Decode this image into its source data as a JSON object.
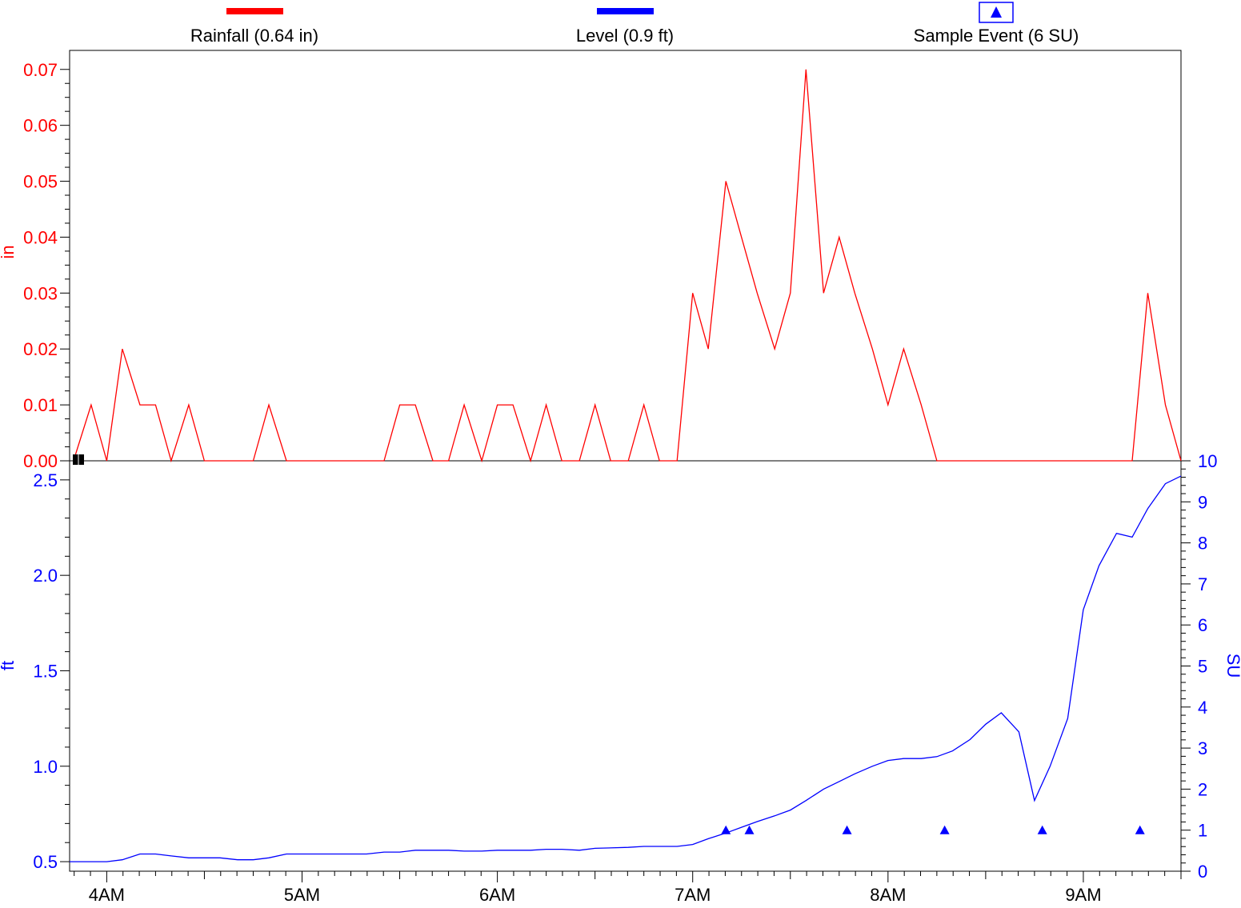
{
  "chart_data": {
    "type": "line",
    "legend": {
      "placement": "top",
      "items": [
        {
          "label": "Rainfall (0.64 in)",
          "color": "#ff0000",
          "marker": "line"
        },
        {
          "label": "Level (0.9 ft)",
          "color": "#0000ff",
          "marker": "line"
        },
        {
          "label": "Sample Event (6 SU)",
          "color": "#0000ff",
          "marker": "triangle-box"
        }
      ]
    },
    "x_axis": {
      "unit": "hours",
      "range": [
        3.81,
        9.5
      ],
      "tick_values": [
        4,
        5,
        6,
        7,
        8,
        9
      ],
      "tick_labels": [
        "4AM",
        "5AM",
        "6AM",
        "7AM",
        "8AM",
        "9AM"
      ]
    },
    "panels": [
      {
        "id": "rainfall",
        "ylabel": "in",
        "ylabel_color": "#ff0000",
        "ylim": [
          0,
          0.0734
        ],
        "y_ticks": [
          0.0,
          0.01,
          0.02,
          0.03,
          0.04,
          0.05,
          0.06,
          0.07
        ],
        "y_tick_labels": [
          "0.00",
          "0.01",
          "0.02",
          "0.03",
          "0.04",
          "0.05",
          "0.06",
          "0.07"
        ],
        "series": [
          {
            "color": "#ff0000",
            "points": [
              [
                3.83,
                0.0
              ],
              [
                3.92,
                0.01
              ],
              [
                4.0,
                0.0
              ],
              [
                4.08,
                0.02
              ],
              [
                4.17,
                0.01
              ],
              [
                4.25,
                0.01
              ],
              [
                4.33,
                0.0
              ],
              [
                4.42,
                0.01
              ],
              [
                4.5,
                0.0
              ],
              [
                4.58,
                0.0
              ],
              [
                4.67,
                0.0
              ],
              [
                4.75,
                0.0
              ],
              [
                4.83,
                0.01
              ],
              [
                4.92,
                0.0
              ],
              [
                5.0,
                0.0
              ],
              [
                5.08,
                0.0
              ],
              [
                5.17,
                0.0
              ],
              [
                5.25,
                0.0
              ],
              [
                5.33,
                0.0
              ],
              [
                5.42,
                0.0
              ],
              [
                5.5,
                0.01
              ],
              [
                5.58,
                0.01
              ],
              [
                5.67,
                0.0
              ],
              [
                5.75,
                0.0
              ],
              [
                5.83,
                0.01
              ],
              [
                5.92,
                0.0
              ],
              [
                6.0,
                0.01
              ],
              [
                6.08,
                0.01
              ],
              [
                6.17,
                0.0
              ],
              [
                6.25,
                0.01
              ],
              [
                6.33,
                0.0
              ],
              [
                6.42,
                0.0
              ],
              [
                6.5,
                0.01
              ],
              [
                6.58,
                0.0
              ],
              [
                6.67,
                0.0
              ],
              [
                6.75,
                0.01
              ],
              [
                6.83,
                0.0
              ],
              [
                6.92,
                0.0
              ],
              [
                7.0,
                0.03
              ],
              [
                7.08,
                0.02
              ],
              [
                7.17,
                0.05
              ],
              [
                7.25,
                0.04
              ],
              [
                7.33,
                0.03
              ],
              [
                7.42,
                0.02
              ],
              [
                7.5,
                0.03
              ],
              [
                7.58,
                0.07
              ],
              [
                7.67,
                0.03
              ],
              [
                7.75,
                0.04
              ],
              [
                7.83,
                0.03
              ],
              [
                7.92,
                0.02
              ],
              [
                8.0,
                0.01
              ],
              [
                8.08,
                0.02
              ],
              [
                8.17,
                0.01
              ],
              [
                8.25,
                0.0
              ],
              [
                8.33,
                0.0
              ],
              [
                8.42,
                0.0
              ],
              [
                8.5,
                0.0
              ],
              [
                8.58,
                0.0
              ],
              [
                8.67,
                0.0
              ],
              [
                8.75,
                0.0
              ],
              [
                8.83,
                0.0
              ],
              [
                8.92,
                0.0
              ],
              [
                9.0,
                0.0
              ],
              [
                9.08,
                0.0
              ],
              [
                9.17,
                0.0
              ],
              [
                9.25,
                0.0
              ],
              [
                9.33,
                0.03
              ],
              [
                9.42,
                0.01
              ],
              [
                9.5,
                0.0
              ]
            ]
          }
        ]
      },
      {
        "id": "level",
        "ylabel": "ft",
        "ylabel_color": "#0000ff",
        "ylim": [
          0.45,
          2.6
        ],
        "y_ticks": [
          0.5,
          1.0,
          1.5,
          2.0,
          2.5
        ],
        "y_tick_labels": [
          "0.5",
          "1.0",
          "1.5",
          "2.0",
          "2.5"
        ],
        "y2label": "SU",
        "y2lim": [
          0,
          10
        ],
        "y2_ticks": [
          0,
          1,
          2,
          3,
          4,
          5,
          6,
          7,
          8,
          9,
          10
        ],
        "y2_tick_labels": [
          "0",
          "1",
          "2",
          "3",
          "4",
          "5",
          "6",
          "7",
          "8",
          "9",
          "10"
        ],
        "series": [
          {
            "color": "#0000ff",
            "points": [
              [
                3.81,
                0.5
              ],
              [
                4.0,
                0.5
              ],
              [
                4.08,
                0.51
              ],
              [
                4.17,
                0.54
              ],
              [
                4.25,
                0.54
              ],
              [
                4.33,
                0.53
              ],
              [
                4.42,
                0.52
              ],
              [
                4.5,
                0.52
              ],
              [
                4.58,
                0.52
              ],
              [
                4.67,
                0.51
              ],
              [
                4.75,
                0.51
              ],
              [
                4.83,
                0.52
              ],
              [
                4.92,
                0.54
              ],
              [
                5.0,
                0.54
              ],
              [
                5.17,
                0.54
              ],
              [
                5.33,
                0.54
              ],
              [
                5.42,
                0.55
              ],
              [
                5.5,
                0.55
              ],
              [
                5.58,
                0.56
              ],
              [
                5.75,
                0.56
              ],
              [
                5.83,
                0.555
              ],
              [
                5.92,
                0.555
              ],
              [
                6.0,
                0.56
              ],
              [
                6.17,
                0.56
              ],
              [
                6.25,
                0.565
              ],
              [
                6.33,
                0.565
              ],
              [
                6.42,
                0.56
              ],
              [
                6.5,
                0.57
              ],
              [
                6.67,
                0.575
              ],
              [
                6.75,
                0.58
              ],
              [
                6.92,
                0.58
              ],
              [
                7.0,
                0.59
              ],
              [
                7.08,
                0.62
              ],
              [
                7.17,
                0.65
              ],
              [
                7.25,
                0.68
              ],
              [
                7.33,
                0.71
              ],
              [
                7.42,
                0.74
              ],
              [
                7.5,
                0.77
              ],
              [
                7.58,
                0.82
              ],
              [
                7.67,
                0.88
              ],
              [
                7.75,
                0.92
              ],
              [
                7.83,
                0.96
              ],
              [
                7.92,
                1.0
              ],
              [
                8.0,
                1.03
              ],
              [
                8.08,
                1.04
              ],
              [
                8.17,
                1.04
              ],
              [
                8.25,
                1.05
              ],
              [
                8.33,
                1.08
              ],
              [
                8.42,
                1.14
              ],
              [
                8.5,
                1.22
              ],
              [
                8.58,
                1.28
              ],
              [
                8.67,
                1.18
              ],
              [
                8.75,
                0.82
              ],
              [
                8.83,
                1.0
              ],
              [
                8.92,
                1.25
              ],
              [
                9.0,
                1.82
              ],
              [
                9.08,
                2.05
              ],
              [
                9.17,
                2.22
              ],
              [
                9.25,
                2.2
              ],
              [
                9.33,
                2.35
              ],
              [
                9.42,
                2.48
              ],
              [
                9.5,
                2.52
              ]
            ]
          }
        ],
        "events": {
          "label": "Sample Event",
          "color": "#0000ff",
          "y_axis": "y2",
          "points": [
            [
              7.17,
              1
            ],
            [
              7.29,
              1
            ],
            [
              7.79,
              1
            ],
            [
              8.29,
              1
            ],
            [
              8.79,
              1
            ],
            [
              9.29,
              1
            ]
          ]
        }
      }
    ],
    "grid": false
  }
}
